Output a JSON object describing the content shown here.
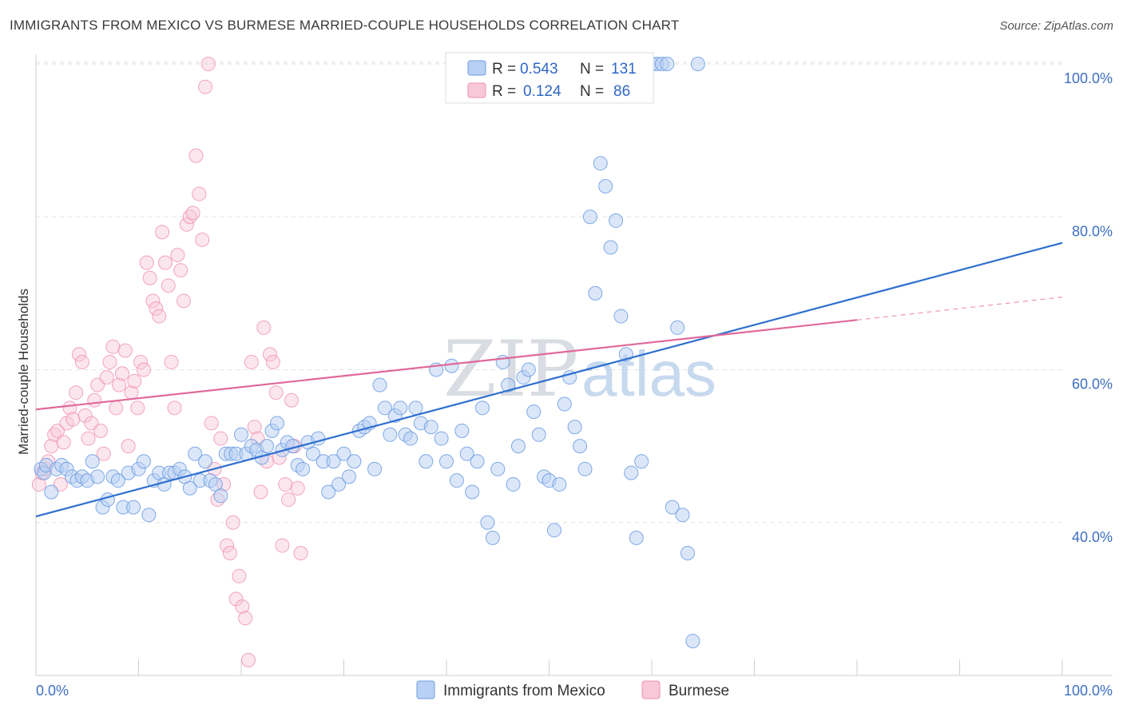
{
  "title": "IMMIGRANTS FROM MEXICO VS BURMESE MARRIED-COUPLE HOUSEHOLDS CORRELATION CHART",
  "source": "Source: ZipAtlas.com",
  "watermark": {
    "zip": "ZIP",
    "atlas": "atlas"
  },
  "colors": {
    "blue": "#6b9be0",
    "blue_fill": "#b8d0f3",
    "blue_line": "#2e6fd0",
    "pink": "#ee8fb0",
    "pink_fill": "#f8c8d8",
    "pink_line": "#e0699a",
    "tick_blue": "#3d6fc4"
  },
  "legend": {
    "r_label": "R =",
    "n_label": "N =",
    "series": [
      {
        "r": "0.543",
        "n": "131"
      },
      {
        "r": "0.124",
        "n": "86"
      }
    ]
  },
  "bottom_legend": [
    "Immigrants from Mexico",
    "Burmese"
  ],
  "chart_data": {
    "type": "scatter",
    "title": "IMMIGRANTS FROM MEXICO VS BURMESE MARRIED-COUPLE HOUSEHOLDS CORRELATION CHART",
    "xlabel": "",
    "ylabel": "Married-couple Households",
    "xlim": [
      0,
      100
    ],
    "ylim": [
      20,
      100
    ],
    "x_tick_labels": [
      "0.0%",
      "100.0%"
    ],
    "y_ticks": [
      40,
      60,
      80,
      100
    ],
    "y_tick_labels": [
      "40.0%",
      "60.0%",
      "80.0%",
      "100.0%"
    ],
    "grid": true,
    "legend_position": "top-center",
    "series": [
      {
        "name": "Immigrants from Mexico",
        "r": 0.543,
        "n": 131,
        "trend": {
          "x": [
            0,
            100
          ],
          "y": [
            40.8,
            76.6
          ]
        },
        "points": [
          [
            0.5,
            47
          ],
          [
            0.8,
            46.5
          ],
          [
            1,
            47.5
          ],
          [
            1.5,
            44
          ],
          [
            2,
            47
          ],
          [
            2.5,
            47.5
          ],
          [
            3,
            47
          ],
          [
            3.5,
            46
          ],
          [
            4,
            45.5
          ],
          [
            4.5,
            46
          ],
          [
            5,
            45.5
          ],
          [
            5.5,
            48
          ],
          [
            6,
            46
          ],
          [
            6.5,
            42
          ],
          [
            7,
            43
          ],
          [
            7.5,
            46
          ],
          [
            8,
            45.5
          ],
          [
            8.5,
            42
          ],
          [
            9,
            46.5
          ],
          [
            9.5,
            42
          ],
          [
            10,
            47
          ],
          [
            10.5,
            48
          ],
          [
            11,
            41
          ],
          [
            11.5,
            45.5
          ],
          [
            12,
            46.5
          ],
          [
            12.5,
            45
          ],
          [
            13,
            46.5
          ],
          [
            13.5,
            46.5
          ],
          [
            14,
            47
          ],
          [
            14.5,
            46
          ],
          [
            15,
            44.5
          ],
          [
            15.5,
            49
          ],
          [
            16,
            45.5
          ],
          [
            16.5,
            48
          ],
          [
            17,
            45.5
          ],
          [
            17.5,
            45
          ],
          [
            18,
            43.5
          ],
          [
            18.5,
            49
          ],
          [
            19,
            49
          ],
          [
            19.5,
            49
          ],
          [
            20,
            51.5
          ],
          [
            20.5,
            49
          ],
          [
            21,
            50
          ],
          [
            21.5,
            49.5
          ],
          [
            22,
            48.5
          ],
          [
            22.5,
            50
          ],
          [
            23,
            52
          ],
          [
            23.5,
            53
          ],
          [
            24,
            49.5
          ],
          [
            24.5,
            50.5
          ],
          [
            25,
            50
          ],
          [
            25.5,
            47.5
          ],
          [
            26,
            47
          ],
          [
            26.5,
            50.5
          ],
          [
            27,
            49
          ],
          [
            27.5,
            51
          ],
          [
            28,
            48
          ],
          [
            28.5,
            44
          ],
          [
            29,
            48
          ],
          [
            29.5,
            45
          ],
          [
            30,
            49
          ],
          [
            30.5,
            46
          ],
          [
            31,
            48
          ],
          [
            31.5,
            52
          ],
          [
            32,
            52.5
          ],
          [
            32.5,
            53
          ],
          [
            33,
            47
          ],
          [
            33.5,
            58
          ],
          [
            34,
            55
          ],
          [
            34.5,
            51.5
          ],
          [
            35,
            54
          ],
          [
            35.5,
            55
          ],
          [
            36,
            51.5
          ],
          [
            36.5,
            51
          ],
          [
            37,
            55
          ],
          [
            37.5,
            53
          ],
          [
            38,
            48
          ],
          [
            38.5,
            52.5
          ],
          [
            39,
            60
          ],
          [
            39.5,
            51
          ],
          [
            40,
            48
          ],
          [
            40.5,
            60.5
          ],
          [
            41,
            45.5
          ],
          [
            41.5,
            52
          ],
          [
            42,
            49
          ],
          [
            42.5,
            44
          ],
          [
            43,
            48
          ],
          [
            43.5,
            55
          ],
          [
            44,
            40
          ],
          [
            44.5,
            38
          ],
          [
            45,
            47
          ],
          [
            45.5,
            61
          ],
          [
            46,
            58
          ],
          [
            46.5,
            45
          ],
          [
            47,
            50
          ],
          [
            47.5,
            59
          ],
          [
            48,
            60
          ],
          [
            48.5,
            54.5
          ],
          [
            49,
            51.5
          ],
          [
            49.5,
            46
          ],
          [
            50,
            45.5
          ],
          [
            50.5,
            39
          ],
          [
            51,
            45
          ],
          [
            51.5,
            55.5
          ],
          [
            52,
            59
          ],
          [
            52.5,
            52.5
          ],
          [
            53,
            50
          ],
          [
            53.5,
            47
          ],
          [
            54,
            80
          ],
          [
            54.5,
            70
          ],
          [
            55,
            87
          ],
          [
            55.5,
            84
          ],
          [
            56,
            76
          ],
          [
            56.5,
            79.5
          ],
          [
            57,
            67
          ],
          [
            57.5,
            62
          ],
          [
            58,
            46.5
          ],
          [
            58.5,
            38
          ],
          [
            59,
            48
          ],
          [
            59.5,
            100
          ],
          [
            60,
            100
          ],
          [
            60.5,
            100
          ],
          [
            61,
            100
          ],
          [
            61.5,
            100
          ],
          [
            62,
            42
          ],
          [
            62.5,
            65.5
          ],
          [
            63,
            41
          ],
          [
            63.5,
            36
          ],
          [
            64,
            24.5
          ],
          [
            64.5,
            100
          ]
        ]
      },
      {
        "name": "Burmese",
        "r": 0.124,
        "n": 86,
        "trend": {
          "x": [
            0,
            80
          ],
          "y": [
            54.8,
            66.5
          ]
        },
        "trend_dashed": {
          "x": [
            80,
            100
          ],
          "y": [
            66.5,
            69.5
          ]
        },
        "points": [
          [
            0.3,
            45
          ],
          [
            0.6,
            46.5
          ],
          [
            0.9,
            47
          ],
          [
            1.2,
            48
          ],
          [
            1.5,
            50
          ],
          [
            1.8,
            51.5
          ],
          [
            2.1,
            52
          ],
          [
            2.4,
            45
          ],
          [
            2.7,
            50.5
          ],
          [
            3,
            53
          ],
          [
            3.3,
            55
          ],
          [
            3.6,
            53.5
          ],
          [
            3.9,
            57
          ],
          [
            4.2,
            62
          ],
          [
            4.5,
            61
          ],
          [
            4.8,
            54
          ],
          [
            5.1,
            51
          ],
          [
            5.4,
            53
          ],
          [
            5.7,
            56
          ],
          [
            6,
            58
          ],
          [
            6.3,
            52
          ],
          [
            6.6,
            49
          ],
          [
            6.9,
            59
          ],
          [
            7.2,
            61
          ],
          [
            7.5,
            63
          ],
          [
            7.8,
            55
          ],
          [
            8.1,
            58
          ],
          [
            8.4,
            59.5
          ],
          [
            8.7,
            62.5
          ],
          [
            9,
            50
          ],
          [
            9.3,
            57
          ],
          [
            9.6,
            58.5
          ],
          [
            9.9,
            55
          ],
          [
            10.2,
            61
          ],
          [
            10.5,
            60
          ],
          [
            10.8,
            74
          ],
          [
            11.1,
            72
          ],
          [
            11.4,
            69
          ],
          [
            11.7,
            68
          ],
          [
            12,
            67
          ],
          [
            12.3,
            78
          ],
          [
            12.6,
            74
          ],
          [
            12.9,
            71
          ],
          [
            13.2,
            61
          ],
          [
            13.5,
            55
          ],
          [
            13.8,
            75
          ],
          [
            14.1,
            73
          ],
          [
            14.4,
            69
          ],
          [
            14.7,
            79
          ],
          [
            15,
            80
          ],
          [
            15.3,
            80.5
          ],
          [
            15.6,
            88
          ],
          [
            15.9,
            83
          ],
          [
            16.2,
            77
          ],
          [
            16.5,
            97
          ],
          [
            16.8,
            100
          ],
          [
            17.1,
            53
          ],
          [
            17.4,
            47
          ],
          [
            17.7,
            43
          ],
          [
            18,
            51
          ],
          [
            18.3,
            45
          ],
          [
            18.6,
            37
          ],
          [
            18.9,
            36
          ],
          [
            19.2,
            40
          ],
          [
            19.5,
            30
          ],
          [
            19.8,
            33
          ],
          [
            20.1,
            29
          ],
          [
            20.4,
            27.5
          ],
          [
            20.7,
            22
          ],
          [
            21,
            61
          ],
          [
            21.3,
            52.5
          ],
          [
            21.6,
            51
          ],
          [
            21.9,
            44
          ],
          [
            22.2,
            65.5
          ],
          [
            22.5,
            48
          ],
          [
            22.8,
            62
          ],
          [
            23.1,
            61
          ],
          [
            23.4,
            57
          ],
          [
            23.7,
            48.5
          ],
          [
            24,
            37
          ],
          [
            24.3,
            45
          ],
          [
            24.6,
            43
          ],
          [
            24.9,
            56
          ],
          [
            25.2,
            50
          ],
          [
            25.5,
            44.5
          ],
          [
            25.8,
            36
          ]
        ]
      }
    ]
  }
}
